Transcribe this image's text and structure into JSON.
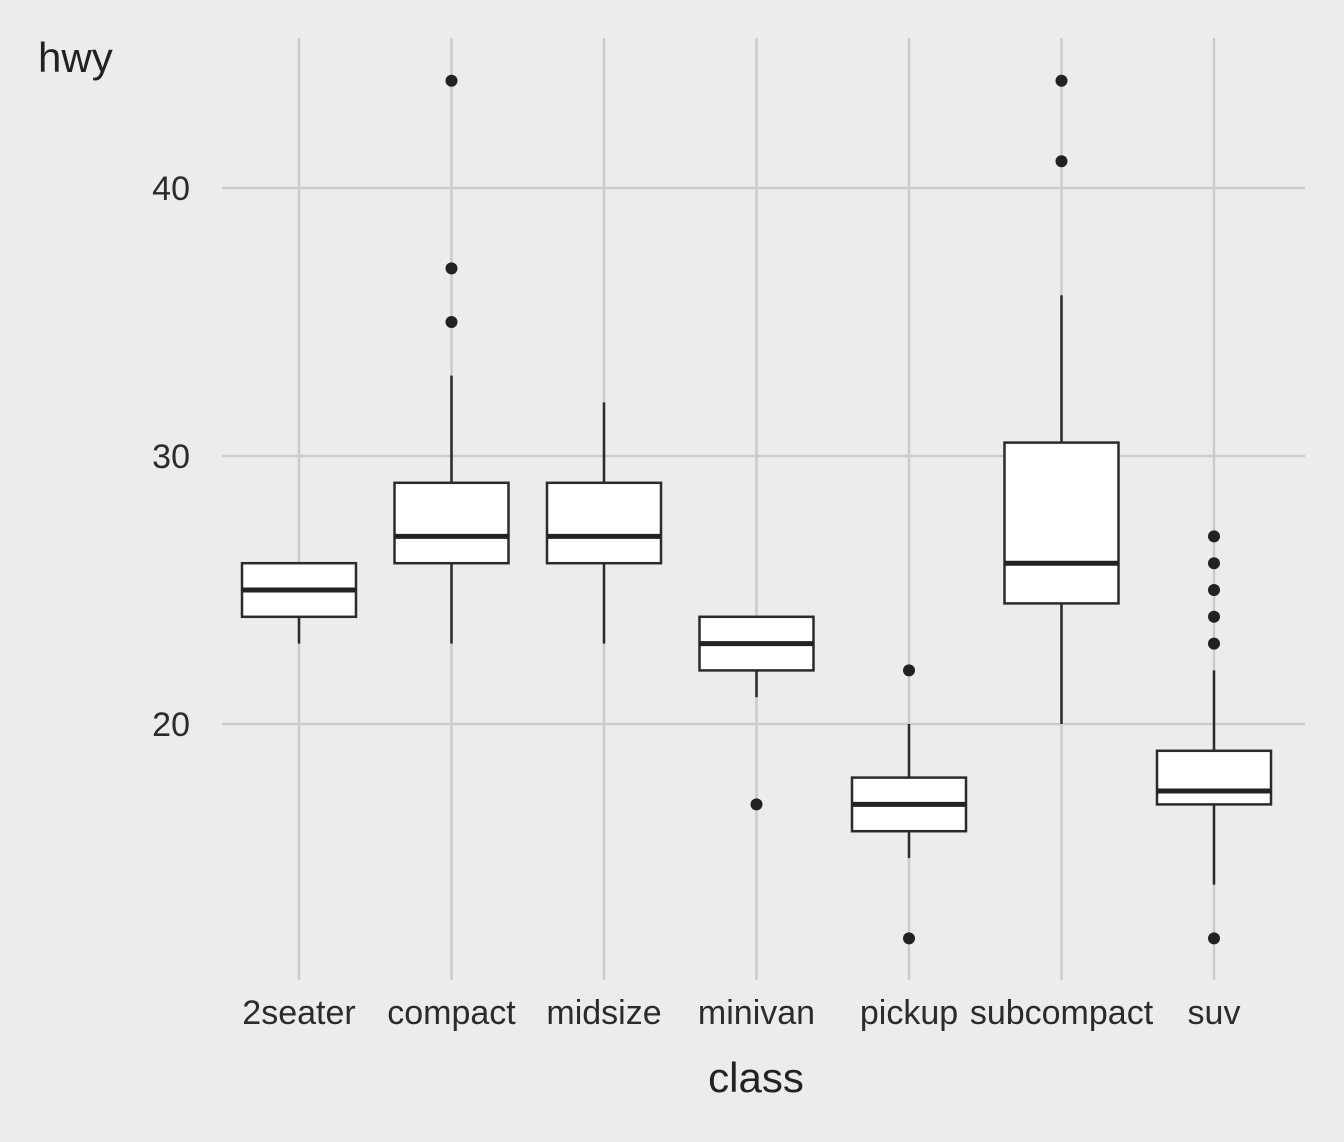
{
  "chart_data": {
    "type": "boxplot",
    "xlabel": "class",
    "ylabel": "hwy",
    "categories": [
      "2seater",
      "compact",
      "midsize",
      "minivan",
      "pickup",
      "subcompact",
      "suv"
    ],
    "y_ticks": [
      20,
      30,
      40
    ],
    "ylim": [
      11,
      46
    ],
    "grid": true,
    "boxes": [
      {
        "category": "2seater",
        "whisker_low": 23,
        "q1": 24,
        "median": 25,
        "q3": 26,
        "whisker_high": 26,
        "outliers": []
      },
      {
        "category": "compact",
        "whisker_low": 23,
        "q1": 26,
        "median": 27,
        "q3": 29,
        "whisker_high": 33,
        "outliers": [
          35,
          37,
          44
        ]
      },
      {
        "category": "midsize",
        "whisker_low": 23,
        "q1": 26,
        "median": 27,
        "q3": 29,
        "whisker_high": 32,
        "outliers": []
      },
      {
        "category": "minivan",
        "whisker_low": 21,
        "q1": 22,
        "median": 23,
        "q3": 24,
        "whisker_high": 24,
        "outliers": [
          17
        ]
      },
      {
        "category": "pickup",
        "whisker_low": 15,
        "q1": 16,
        "median": 17,
        "q3": 18,
        "whisker_high": 20,
        "outliers": [
          12,
          22
        ]
      },
      {
        "category": "subcompact",
        "whisker_low": 20,
        "q1": 24.5,
        "median": 26,
        "q3": 30.5,
        "whisker_high": 36,
        "outliers": [
          41,
          44
        ]
      },
      {
        "category": "suv",
        "whisker_low": 14,
        "q1": 17,
        "median": 17.5,
        "q3": 19,
        "whisker_high": 22,
        "outliers": [
          12,
          23,
          24,
          25,
          26,
          27
        ]
      }
    ]
  },
  "colors": {
    "background": "#ececec",
    "grid": "#cbcbcb",
    "box_fill": "#ffffff",
    "stroke": "#2b2b2b"
  }
}
